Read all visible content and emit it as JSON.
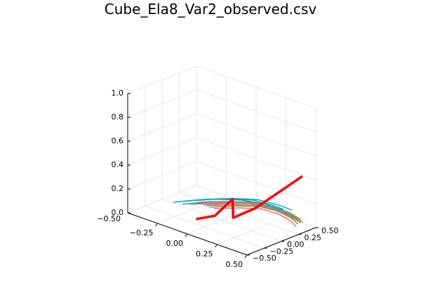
{
  "chart_data": {
    "type": "line",
    "projection": "3d",
    "title": "Cube_Ela8_Var2_observed.csv",
    "xlabel": "",
    "ylabel": "",
    "zlabel": "",
    "xlim": [
      -0.5,
      0.5
    ],
    "ylim": [
      -0.5,
      0.5
    ],
    "zlim": [
      0.0,
      1.0
    ],
    "x_ticks": [
      "-0.25",
      "0.00",
      "0.25",
      "0.50"
    ],
    "y_ticks": [
      "-0.50",
      "-0.25",
      "0.00",
      "0.25",
      "0.50"
    ],
    "z_ticks": [
      "0.0",
      "0.2",
      "0.4",
      "0.6",
      "0.8",
      "1.0"
    ],
    "grid": true,
    "legend": "none",
    "highlight_color": "#ff0000",
    "series": [
      {
        "color": "#009af9",
        "x": [
          -0.3,
          -0.15,
          0.0,
          0.15,
          0.3,
          0.42
        ],
        "y": [
          -0.05,
          0.1,
          0.22,
          0.32,
          0.38,
          0.42
        ],
        "z": [
          0.04,
          0.08,
          0.1,
          0.11,
          0.09,
          0.06
        ]
      },
      {
        "color": "#e26f46",
        "x": [
          -0.25,
          -0.1,
          0.05,
          0.2,
          0.33,
          0.45
        ],
        "y": [
          -0.02,
          0.12,
          0.24,
          0.33,
          0.38,
          0.4
        ],
        "z": [
          0.05,
          0.08,
          0.11,
          0.1,
          0.08,
          0.05
        ]
      },
      {
        "color": "#3ea44e",
        "x": [
          -0.22,
          -0.08,
          0.08,
          0.22,
          0.35,
          0.45
        ],
        "y": [
          0.0,
          0.14,
          0.26,
          0.34,
          0.37,
          0.38
        ],
        "z": [
          0.06,
          0.09,
          0.12,
          0.11,
          0.09,
          0.06
        ]
      },
      {
        "color": "#c271d2",
        "x": [
          -0.18,
          -0.05,
          0.1,
          0.25,
          0.37,
          0.45
        ],
        "y": [
          0.02,
          0.15,
          0.27,
          0.33,
          0.36,
          0.33
        ],
        "z": [
          0.07,
          0.1,
          0.12,
          0.1,
          0.07,
          0.05
        ]
      },
      {
        "color": "#ac8e18",
        "x": [
          -0.15,
          0.0,
          0.14,
          0.27,
          0.38,
          0.46
        ],
        "y": [
          0.04,
          0.17,
          0.28,
          0.34,
          0.36,
          0.35
        ],
        "z": [
          0.06,
          0.09,
          0.11,
          0.1,
          0.08,
          0.06
        ]
      },
      {
        "color": "#00a9ad",
        "x": [
          -0.35,
          -0.2,
          -0.05,
          0.1,
          0.22,
          0.3
        ],
        "y": [
          -0.1,
          0.05,
          0.18,
          0.28,
          0.34,
          0.38
        ],
        "z": [
          0.05,
          0.09,
          0.12,
          0.14,
          0.13,
          0.11
        ]
      },
      {
        "color": "#ed5e93",
        "x": [
          -0.1,
          0.05,
          0.18,
          0.3,
          0.4,
          0.47
        ],
        "y": [
          0.06,
          0.18,
          0.26,
          0.3,
          0.3,
          0.27
        ],
        "z": [
          0.05,
          0.08,
          0.1,
          0.09,
          0.07,
          0.05
        ]
      },
      {
        "color": "#c68125",
        "x": [
          -0.2,
          -0.05,
          0.1,
          0.24,
          0.36,
          0.44
        ],
        "y": [
          0.0,
          0.13,
          0.25,
          0.33,
          0.38,
          0.39
        ],
        "z": [
          0.08,
          0.11,
          0.13,
          0.12,
          0.1,
          0.07
        ]
      },
      {
        "color": "#00a98d",
        "x": [
          -0.28,
          -0.12,
          0.03,
          0.18,
          0.3,
          0.4
        ],
        "y": [
          -0.04,
          0.1,
          0.22,
          0.31,
          0.36,
          0.38
        ],
        "z": [
          0.07,
          0.11,
          0.13,
          0.13,
          0.11,
          0.08
        ]
      },
      {
        "color": "#8e971e",
        "x": [
          -0.12,
          0.02,
          0.16,
          0.29,
          0.39,
          0.46
        ],
        "y": [
          0.03,
          0.16,
          0.27,
          0.33,
          0.34,
          0.31
        ],
        "z": [
          0.06,
          0.09,
          0.11,
          0.1,
          0.08,
          0.06
        ]
      },
      {
        "color": "#00a8cb",
        "x": [
          -0.32,
          -0.17,
          -0.02,
          0.13,
          0.26,
          0.36
        ],
        "y": [
          -0.08,
          0.07,
          0.2,
          0.3,
          0.36,
          0.4
        ],
        "z": [
          0.06,
          0.1,
          0.13,
          0.15,
          0.14,
          0.12
        ]
      },
      {
        "color": "#9b7fe9",
        "x": [
          -0.16,
          -0.02,
          0.12,
          0.26,
          0.38,
          0.46
        ],
        "y": [
          0.01,
          0.14,
          0.26,
          0.34,
          0.37,
          0.36
        ],
        "z": [
          0.07,
          0.1,
          0.12,
          0.11,
          0.09,
          0.07
        ]
      },
      {
        "color": "#ff0000",
        "x": [
          -0.1,
          0.0,
          0.08,
          0.05,
          0.15,
          0.3,
          0.4
        ],
        "y": [
          -0.2,
          -0.1,
          0.02,
          0.08,
          0.22,
          0.38,
          0.48
        ],
        "z": [
          0.02,
          0.06,
          0.2,
          0.02,
          0.1,
          0.28,
          0.4
        ],
        "linewidth": "thick"
      }
    ]
  }
}
